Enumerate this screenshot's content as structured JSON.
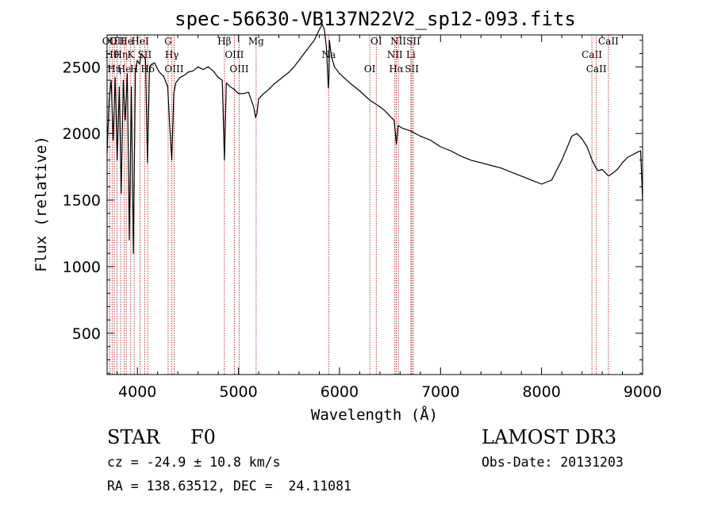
{
  "chart_data": {
    "type": "line",
    "title": "spec-56630-VB137N22V2_sp12-093.fits",
    "xlabel": "Wavelength (Å)",
    "ylabel": "Flux (relative)",
    "xlim": [
      3700,
      9000
    ],
    "ylim": [
      190,
      2740
    ],
    "x_ticks": [
      4000,
      5000,
      6000,
      7000,
      8000,
      9000
    ],
    "y_ticks": [
      500,
      1000,
      1500,
      2000,
      2500
    ],
    "series": [
      {
        "name": "flux",
        "x": [
          3700,
          3720,
          3740,
          3760,
          3780,
          3800,
          3820,
          3840,
          3860,
          3880,
          3900,
          3920,
          3940,
          3960,
          3980,
          4000,
          4020,
          4040,
          4060,
          4080,
          4100,
          4120,
          4140,
          4170,
          4200,
          4230,
          4260,
          4300,
          4320,
          4340,
          4360,
          4380,
          4420,
          4470,
          4500,
          4550,
          4600,
          4650,
          4700,
          4750,
          4800,
          4840,
          4861,
          4880,
          4920,
          4960,
          5000,
          5050,
          5100,
          5150,
          5170,
          5183,
          5200,
          5250,
          5300,
          5350,
          5400,
          5450,
          5500,
          5550,
          5600,
          5650,
          5700,
          5750,
          5800,
          5830,
          5850,
          5870,
          5880,
          5890,
          5896,
          5900,
          5920,
          5950,
          6000,
          6100,
          6200,
          6300,
          6400,
          6450,
          6500,
          6540,
          6563,
          6580,
          6620,
          6700,
          6800,
          6900,
          7000,
          7100,
          7200,
          7300,
          7400,
          7500,
          7600,
          7700,
          7800,
          7900,
          8000,
          8100,
          8200,
          8300,
          8350,
          8400,
          8450,
          8500,
          8540,
          8560,
          8600,
          8650,
          8662,
          8700,
          8750,
          8800,
          8850,
          8900,
          8950,
          8980,
          9000
        ],
        "y": [
          1850,
          2250,
          2400,
          1950,
          2420,
          1800,
          2350,
          1550,
          2400,
          2100,
          2450,
          1200,
          2350,
          1100,
          2480,
          2550,
          2520,
          2600,
          2580,
          2560,
          1780,
          2500,
          2520,
          2530,
          2480,
          2450,
          2430,
          2350,
          2050,
          1800,
          2300,
          2380,
          2420,
          2440,
          2460,
          2470,
          2500,
          2480,
          2500,
          2470,
          2420,
          2400,
          1800,
          2380,
          2350,
          2330,
          2300,
          2300,
          2310,
          2200,
          2120,
          2150,
          2260,
          2300,
          2330,
          2370,
          2400,
          2430,
          2460,
          2500,
          2550,
          2600,
          2650,
          2700,
          2780,
          2820,
          2780,
          2650,
          2500,
          2340,
          2420,
          2700,
          2580,
          2500,
          2450,
          2380,
          2320,
          2250,
          2200,
          2170,
          2130,
          2100,
          1920,
          2060,
          2040,
          2020,
          1980,
          1950,
          1900,
          1870,
          1830,
          1800,
          1780,
          1760,
          1740,
          1710,
          1680,
          1650,
          1620,
          1650,
          1800,
          1980,
          2000,
          1960,
          1900,
          1800,
          1740,
          1720,
          1730,
          1690,
          1680,
          1700,
          1730,
          1780,
          1820,
          1840,
          1860,
          1870,
          1500
        ]
      }
    ],
    "lines": [
      {
        "x": 3727,
        "label": "OII"
      },
      {
        "x": 3750,
        "label": "Hθ"
      },
      {
        "x": 3771,
        "label": "Hη"
      },
      {
        "x": 3798,
        "label": "OII"
      },
      {
        "x": 3835,
        "label": "Hη"
      },
      {
        "x": 3869,
        "label": "He"
      },
      {
        "x": 3889,
        "label": "He"
      },
      {
        "x": 3934,
        "label": "K"
      },
      {
        "x": 3968,
        "label": "H"
      },
      {
        "x": 4026,
        "label": "HeI"
      },
      {
        "x": 4072,
        "label": "SII"
      },
      {
        "x": 4102,
        "label": "Hδ"
      },
      {
        "x": 4304,
        "label": "G"
      },
      {
        "x": 4341,
        "label": "Hγ"
      },
      {
        "x": 4363,
        "label": "OIII"
      },
      {
        "x": 4861,
        "label": "Hβ"
      },
      {
        "x": 4959,
        "label": "OIII"
      },
      {
        "x": 5007,
        "label": "OIII"
      },
      {
        "x": 5175,
        "label": "Mg"
      },
      {
        "x": 5893,
        "label": "Na"
      },
      {
        "x": 6300,
        "label": "OI"
      },
      {
        "x": 6364,
        "label": "OI"
      },
      {
        "x": 6548,
        "label": "NII"
      },
      {
        "x": 6563,
        "label": "Hα"
      },
      {
        "x": 6583,
        "label": "NII"
      },
      {
        "x": 6707,
        "label": "Li"
      },
      {
        "x": 6716,
        "label": "SII"
      },
      {
        "x": 6731,
        "label": "SII"
      },
      {
        "x": 8498,
        "label": "CaII"
      },
      {
        "x": 8542,
        "label": "CaII"
      },
      {
        "x": 8662,
        "label": "CaII"
      }
    ]
  },
  "info": {
    "object_class": "STAR",
    "subclass": "F0",
    "cz": "cz = -24.9 ± 10.8 km/s",
    "coords": "RA = 138.63512, DEC =  24.11081",
    "survey": "LAMOST DR3",
    "obs_date": "Obs-Date: 20131203"
  }
}
